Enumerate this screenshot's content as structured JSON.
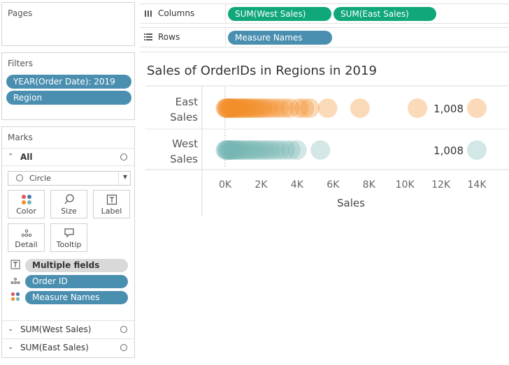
{
  "pages": {
    "title": "Pages"
  },
  "filters": {
    "title": "Filters",
    "items": [
      "YEAR(Order Date): 2019",
      "Region"
    ]
  },
  "marks": {
    "title": "Marks",
    "all_label": "All",
    "mark_type": "Circle",
    "buttons": {
      "color": "Color",
      "size": "Size",
      "label": "Label",
      "detail": "Detail",
      "tooltip": "Tooltip"
    },
    "shelf_items": [
      "Multiple fields",
      "Order ID",
      "Measure Names"
    ],
    "sub_rows": [
      "SUM(West Sales)",
      "SUM(East Sales)"
    ]
  },
  "columns": {
    "label": "Columns",
    "pills": [
      "SUM(West Sales)",
      "SUM(East Sales)"
    ]
  },
  "rows": {
    "label": "Rows",
    "pills": [
      "Measure Names"
    ]
  },
  "colors": {
    "east": "#f28e2b",
    "west": "#76b7b2",
    "blue_pill": "#4b8fb0",
    "green_pill": "#10a77a"
  },
  "chart_data": {
    "type": "scatter",
    "title": "Sales of OrderIDs in Regions in 2019",
    "xlabel": "Sales",
    "xlim": [
      -1000,
      14500
    ],
    "xticks": [
      0,
      2000,
      4000,
      6000,
      8000,
      10000,
      12000,
      14000
    ],
    "xtick_labels": [
      "0K",
      "2K",
      "4K",
      "6K",
      "8K",
      "10K",
      "12K",
      "14K"
    ],
    "categories": [
      "East\nSales",
      "West\nSales"
    ],
    "series": [
      {
        "name": "East Sales",
        "color": "#f28e2b",
        "label_text": "1,008",
        "values": [
          20,
          60,
          100,
          150,
          200,
          260,
          320,
          380,
          450,
          520,
          600,
          680,
          760,
          850,
          950,
          1050,
          1150,
          1260,
          1380,
          1500,
          1650,
          1800,
          1950,
          2100,
          2300,
          2500,
          2750,
          3000,
          3300,
          3600,
          4100,
          4400,
          4700,
          5700,
          7500,
          10700,
          14000
        ]
      },
      {
        "name": "West Sales",
        "color": "#76b7b2",
        "label_text": "1,008",
        "values": [
          20,
          60,
          110,
          170,
          230,
          300,
          380,
          460,
          550,
          650,
          760,
          880,
          1000,
          1150,
          1300,
          1450,
          1600,
          1780,
          1950,
          2150,
          2350,
          2550,
          2800,
          3050,
          3350,
          3650,
          4000,
          5300,
          14000
        ]
      }
    ]
  }
}
